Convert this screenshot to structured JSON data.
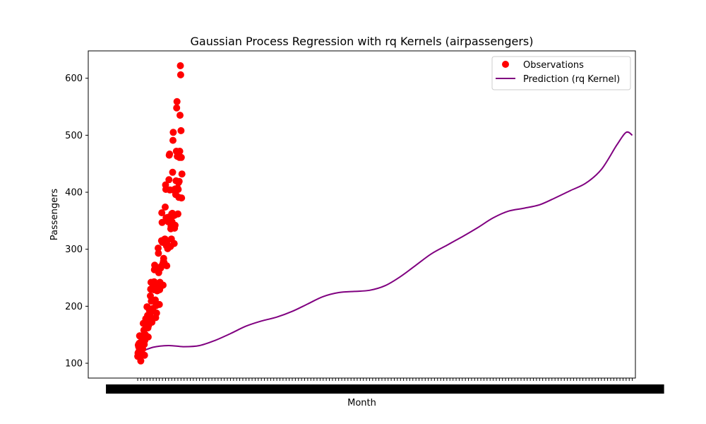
{
  "chart_data": {
    "type": "scatter",
    "title": "Gaussian Process Regression with rq Kernels (airpassengers)",
    "xlabel": "Month",
    "ylabel": "Passengers",
    "y_ticks": [
      100,
      200,
      300,
      400,
      500,
      600
    ],
    "ylim": [
      74,
      648
    ],
    "xlim": [
      -16,
      161
    ],
    "grid": false,
    "legend_position": "upper right",
    "x_tick_labels": "dense, overlapping and illegible (one per month)",
    "series": [
      {
        "name": "Observations",
        "kind": "scatter",
        "color": "#ff0000",
        "x": [
          0,
          0.1,
          0.2,
          0.3,
          0.4,
          0.5,
          0.6,
          0.7,
          0.8,
          0.9,
          1,
          1.1,
          1.2,
          1.3,
          1.4,
          1.5,
          1.6,
          1.7,
          1.8,
          1.9,
          2,
          2.1,
          2.2,
          2.3,
          2.4,
          2.5,
          2.6,
          2.7,
          2.8,
          2.9,
          3,
          3.1,
          3.2,
          3.3,
          3.4,
          3.5,
          3.6,
          3.7,
          3.8,
          3.9,
          4,
          4.1,
          4.2,
          4.3,
          4.4,
          4.5,
          4.6,
          4.7,
          4.8,
          4.9,
          5,
          5.1,
          5.2,
          5.3,
          5.4,
          5.5,
          5.6,
          5.7,
          5.8,
          5.9,
          6,
          6.1,
          6.2,
          6.3,
          6.4,
          6.5,
          6.6,
          6.7,
          6.8,
          6.9,
          7,
          7.1,
          7.2,
          7.3,
          7.4,
          7.5,
          7.6,
          7.7,
          7.8,
          7.9,
          8,
          8.1,
          8.2,
          8.3,
          8.4,
          8.5,
          8.6,
          8.7,
          8.8,
          8.9,
          9,
          9.1,
          9.2,
          9.3,
          9.4,
          9.5,
          9.6,
          9.7,
          9.8,
          9.9,
          10,
          10.1,
          10.2,
          10.3,
          10.4,
          10.5,
          10.6,
          10.7,
          10.8,
          10.9,
          11,
          11.1,
          11.2,
          11.3,
          11.4,
          11.5,
          11.6,
          11.7,
          11.8,
          11.9,
          12,
          12.1,
          12.2,
          12.3,
          12.4,
          12.5,
          12.6,
          12.7,
          12.8,
          12.9,
          13,
          13.1,
          13.2,
          13.3,
          13.4,
          13.5,
          13.6,
          13.7,
          13.8,
          13.9,
          14,
          14.1,
          14.2,
          14.3
        ],
        "y": [
          112,
          118,
          132,
          129,
          121,
          135,
          148,
          148,
          136,
          119,
          104,
          118,
          115,
          126,
          141,
          135,
          125,
          149,
          170,
          170,
          158,
          133,
          114,
          140,
          145,
          150,
          178,
          163,
          172,
          178,
          199,
          199,
          184,
          162,
          146,
          166,
          171,
          180,
          193,
          181,
          183,
          218,
          230,
          242,
          209,
          191,
          172,
          194,
          196,
          196,
          236,
          235,
          229,
          243,
          264,
          272,
          237,
          211,
          180,
          201,
          204,
          188,
          235,
          227,
          234,
          264,
          302,
          293,
          259,
          229,
          203,
          229,
          242,
          233,
          267,
          269,
          270,
          315,
          364,
          347,
          312,
          274,
          237,
          278,
          284,
          277,
          317,
          313,
          318,
          374,
          413,
          405,
          355,
          306,
          271,
          306,
          315,
          301,
          356,
          348,
          355,
          422,
          465,
          467,
          404,
          347,
          305,
          336,
          340,
          318,
          362,
          348,
          363,
          435,
          491,
          505,
          404,
          359,
          310,
          337,
          360,
          342,
          406,
          396,
          420,
          472,
          548,
          559,
          463,
          407,
          362,
          405,
          417,
          391,
          419,
          461,
          472,
          535,
          622,
          606,
          508,
          461,
          390,
          432
        ]
      },
      {
        "name": "Prediction (rq Kernel)",
        "kind": "line",
        "color": "#800080",
        "x": [
          0,
          5,
          10,
          15,
          20,
          25,
          30,
          35,
          40,
          45,
          50,
          55,
          60,
          65,
          70,
          75,
          80,
          85,
          90,
          95,
          100,
          105,
          110,
          115,
          120,
          125,
          130,
          135,
          140,
          145,
          150,
          155,
          158,
          160
        ],
        "y": [
          118,
          128,
          131,
          129,
          131,
          140,
          152,
          165,
          174,
          181,
          191,
          204,
          217,
          224,
          226,
          228,
          236,
          252,
          272,
          292,
          307,
          322,
          338,
          355,
          367,
          372,
          378,
          390,
          403,
          416,
          440,
          483,
          505,
          500
        ]
      }
    ]
  }
}
